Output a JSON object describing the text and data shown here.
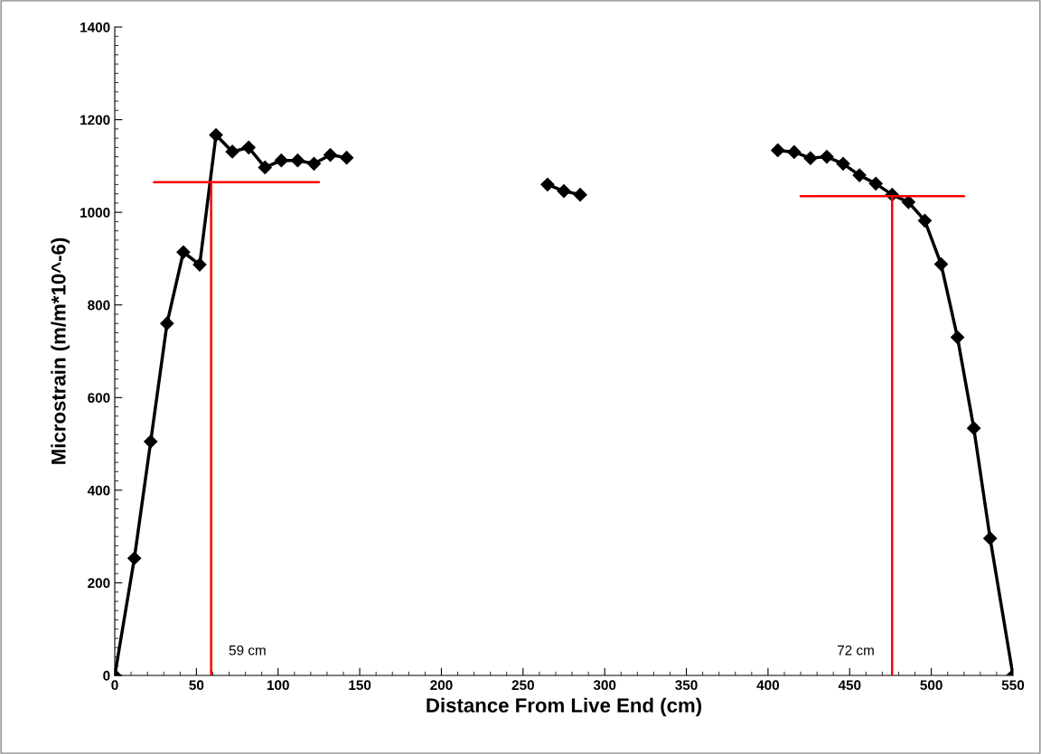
{
  "chart_data": {
    "type": "line",
    "xlabel": "Distance From Live End (cm)",
    "ylabel": "Microstrain (m/m*10^-6)",
    "xlim": [
      0,
      550
    ],
    "xticks": [
      0,
      50,
      100,
      150,
      200,
      250,
      300,
      350,
      400,
      450,
      500,
      550
    ],
    "ylim": [
      0,
      1400
    ],
    "yticks": [
      0,
      200,
      400,
      600,
      800,
      1000,
      1200,
      1400
    ],
    "grid": false,
    "marker": "diamond",
    "line_style": "solid",
    "series": [
      {
        "color": "#000000",
        "x": [
          0,
          12,
          22,
          32,
          42,
          52,
          62,
          72,
          82,
          92,
          102,
          112,
          122,
          132,
          142
        ],
        "values": [
          0,
          253,
          505,
          760,
          914,
          887,
          1167,
          1131,
          1140,
          1097,
          1112,
          1112,
          1105,
          1124,
          1118
        ]
      },
      {
        "color": "#000000",
        "x": [
          265,
          275,
          285
        ],
        "values": [
          1060,
          1046,
          1038
        ]
      },
      {
        "color": "#000000",
        "x": [
          406,
          416,
          426,
          436,
          446,
          456,
          466,
          476,
          486,
          496,
          506,
          516,
          526,
          536,
          550
        ],
        "values": [
          1134,
          1130,
          1117,
          1120,
          1105,
          1080,
          1062,
          1038,
          1022,
          982,
          888,
          730,
          534,
          296,
          0
        ]
      },
      {
        "type": "line",
        "color": "#ff0000",
        "marker": "none",
        "x": [
          24,
          125
        ],
        "values": [
          1065,
          1065
        ]
      },
      {
        "type": "line",
        "color": "#ff0000",
        "marker": "none",
        "x": [
          59,
          59
        ],
        "values": [
          0,
          1065
        ]
      },
      {
        "type": "line",
        "color": "#ff0000",
        "marker": "none",
        "x": [
          420,
          520
        ],
        "values": [
          1035,
          1035
        ]
      },
      {
        "type": "line",
        "color": "#ff0000",
        "marker": "none",
        "x": [
          476,
          476
        ],
        "values": [
          0,
          1035
        ]
      }
    ],
    "annotations": [
      {
        "text": "59 cm",
        "x": 59,
        "y": 0
      },
      {
        "text": "72 cm",
        "x": 476,
        "y": 0
      }
    ]
  }
}
